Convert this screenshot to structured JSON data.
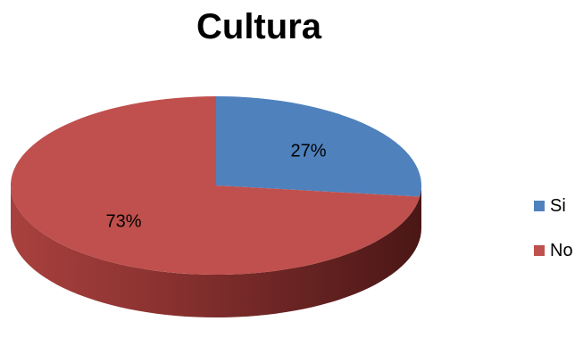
{
  "chart_data": {
    "type": "pie",
    "title": "Cultura",
    "categories": [
      "Si",
      "No"
    ],
    "values": [
      27,
      73
    ],
    "labels": [
      "27%",
      "73%"
    ],
    "colors": [
      "#4f81bd",
      "#c0504d"
    ],
    "legend_position": "right"
  }
}
